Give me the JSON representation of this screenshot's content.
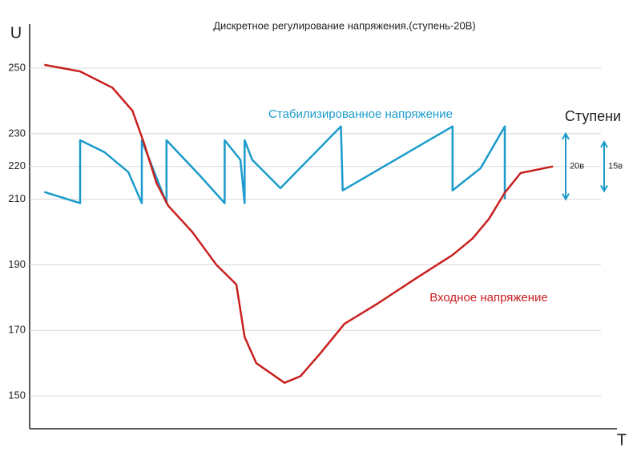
{
  "chart_data": {
    "type": "line",
    "title": "Дискретное регулирование напряжения.(ступень-20В)",
    "y_label": "U",
    "x_label": "T",
    "xlim": [
      0,
      100
    ],
    "ylim": [
      140,
      261
    ],
    "yticks": [
      150,
      170,
      190,
      210,
      220,
      230,
      250
    ],
    "grid": true,
    "series": [
      {
        "name": "Стабилизированное напряжение",
        "color": "#1b9bcb",
        "x": [
          2.5,
          8.6,
          8.6,
          12.7,
          16.8,
          19.1,
          19.1,
          23.3,
          23.3,
          29.1,
          33.2,
          33.2,
          35.9,
          36.6,
          36.6,
          37.9,
          42.7,
          53.0,
          53.3,
          72.0,
          72.0,
          76.8,
          80.9,
          80.9
        ],
        "values": [
          212.2,
          208.8,
          228,
          224.4,
          218.3,
          208.8,
          228,
          208.8,
          228,
          217,
          208.8,
          228,
          222,
          208.8,
          228,
          222,
          213.4,
          232.2,
          212.7,
          232.2,
          212.7,
          219.5,
          232.2,
          210
        ]
      },
      {
        "name": "Входное напряжение",
        "color": "#c8201f",
        "x": [
          2.5,
          8.6,
          14.1,
          17.5,
          19.5,
          21.6,
          23.6,
          27.7,
          31.8,
          35.2,
          36.6,
          38.6,
          43.4,
          46.1,
          49.5,
          53.6,
          59.1,
          65.9,
          72.0,
          75.4,
          78.2,
          80.9,
          83.6,
          89.1
        ],
        "values": [
          251,
          249,
          244,
          237,
          227,
          215,
          208,
          200,
          190,
          184,
          168,
          160,
          154,
          156,
          163,
          172,
          178,
          186,
          193,
          198,
          204,
          212,
          218,
          220
        ]
      }
    ],
    "steps_title": "Ступени",
    "steps": [
      {
        "label": "20в",
        "from": 210,
        "to": 230
      },
      {
        "label": "15в",
        "from": 212.5,
        "to": 227.5
      }
    ]
  }
}
